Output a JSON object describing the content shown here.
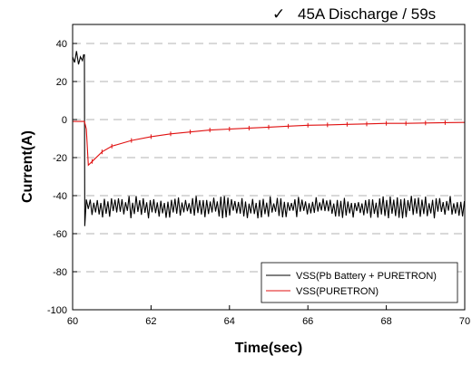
{
  "header": {
    "check_glyph": "✓",
    "text": "45A Discharge / 59s",
    "check_color": "#66cc33"
  },
  "chart_data": {
    "type": "line",
    "title": "",
    "xlabel": "Time(sec)",
    "ylabel": "Current(A)",
    "xlim": [
      60,
      70
    ],
    "ylim": [
      -100,
      50
    ],
    "xticks": [
      60,
      62,
      64,
      66,
      68,
      70
    ],
    "yticks": [
      -100,
      -80,
      -60,
      -40,
      -20,
      0,
      20,
      40
    ],
    "grid": "horizontal dashed",
    "legend_position": "bottom-right",
    "series": [
      {
        "name": "VSS(Pb Battery + PURETRON)",
        "color": "#000000",
        "description_points": [
          [
            60.0,
            33
          ],
          [
            60.05,
            30
          ],
          [
            60.1,
            36
          ],
          [
            60.15,
            29
          ],
          [
            60.2,
            33
          ],
          [
            60.25,
            31
          ],
          [
            60.28,
            34
          ],
          [
            60.3,
            34
          ],
          [
            60.31,
            -56
          ],
          [
            60.35,
            -42
          ],
          [
            60.4,
            -47
          ]
        ],
        "steady_mean": -46,
        "steady_amplitude": 6,
        "x_end": 70
      },
      {
        "name": "VSS(PURETRON)",
        "color": "#e01010",
        "points": [
          [
            60.0,
            -1
          ],
          [
            60.1,
            -1
          ],
          [
            60.2,
            -1
          ],
          [
            60.3,
            -1
          ],
          [
            60.35,
            -5
          ],
          [
            60.4,
            -24
          ],
          [
            60.5,
            -22
          ],
          [
            60.75,
            -17
          ],
          [
            61.0,
            -14
          ],
          [
            61.5,
            -11
          ],
          [
            62.0,
            -9
          ],
          [
            62.5,
            -7.5
          ],
          [
            63.0,
            -6.5
          ],
          [
            63.5,
            -5.5
          ],
          [
            64.0,
            -5
          ],
          [
            64.5,
            -4.5
          ],
          [
            65.0,
            -4
          ],
          [
            65.5,
            -3.5
          ],
          [
            66.0,
            -3
          ],
          [
            66.5,
            -2.8
          ],
          [
            67.0,
            -2.5
          ],
          [
            67.5,
            -2.3
          ],
          [
            68.0,
            -2
          ],
          [
            68.5,
            -2
          ],
          [
            69.0,
            -1.8
          ],
          [
            69.5,
            -1.6
          ],
          [
            70.0,
            -1.5
          ]
        ]
      }
    ]
  }
}
